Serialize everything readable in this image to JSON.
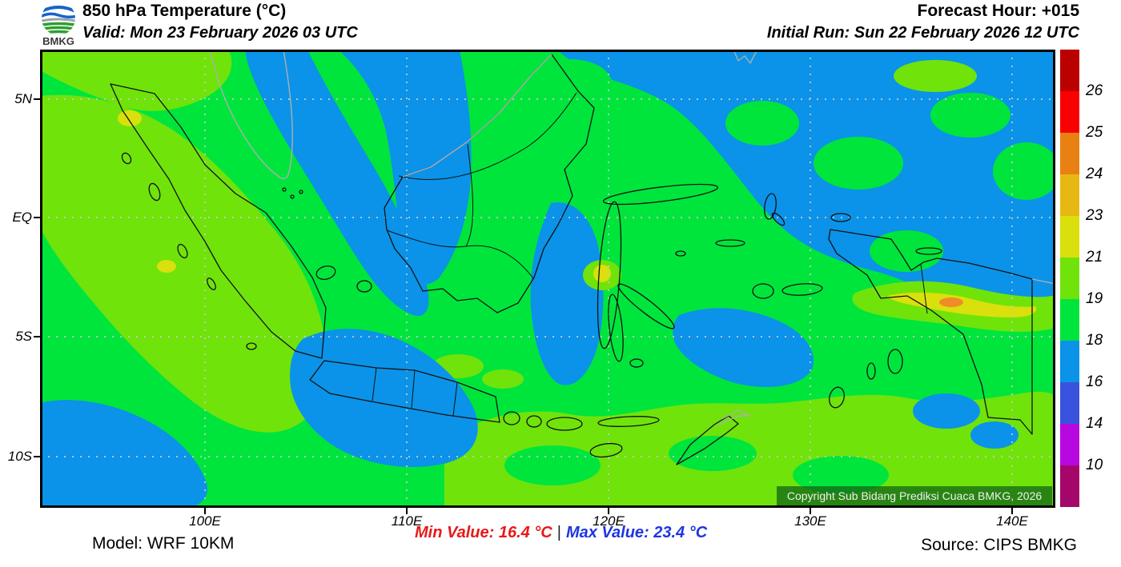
{
  "header": {
    "logo_text": "BMKG",
    "title": "850 hPa Temperature (°C)",
    "valid": "Valid: Mon 23 February 2026 03 UTC",
    "forecast_hour": "Forecast Hour: +015",
    "initial_run": "Initial Run: Sun 22 February 2026 12 UTC"
  },
  "map": {
    "lat_ticks": [
      "5N",
      "EQ",
      "5S",
      "10S"
    ],
    "lon_ticks": [
      "100E",
      "110E",
      "120E",
      "130E",
      "140E"
    ],
    "copyright": "Copyright Sub Bidang Prediksi Cuaca BMKG, 2026"
  },
  "colorbar": {
    "unit": "°C",
    "labels": [
      "26",
      "25",
      "24",
      "23",
      "21",
      "19",
      "18",
      "16",
      "14",
      "10"
    ],
    "colors": [
      "#bb0000",
      "#fb0000",
      "#e88012",
      "#e8b812",
      "#d9e00b",
      "#70e30b",
      "#00e53c",
      "#0a93e8",
      "#3a53de",
      "#b808e0",
      "#a4066a"
    ]
  },
  "field_colors": {
    "green": "#00e53c",
    "blue": "#0a93e8",
    "chartreuse": "#70e30b",
    "yellow": "#d9e00b",
    "orange": "#ef8b28"
  },
  "footer": {
    "model": "Model: WRF 10KM",
    "min_value": "Min Value: 16.4 °C",
    "separator": "|",
    "max_value": "Max Value: 23.4 °C",
    "source": "Source: CIPS BMKG",
    "min_color": "#e81818",
    "max_color": "#1f35e0"
  }
}
